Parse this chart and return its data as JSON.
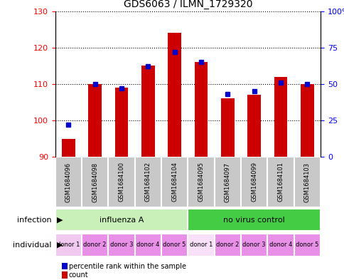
{
  "title": "GDS6063 / ILMN_1729320",
  "samples": [
    "GSM1684096",
    "GSM1684098",
    "GSM1684100",
    "GSM1684102",
    "GSM1684104",
    "GSM1684095",
    "GSM1684097",
    "GSM1684099",
    "GSM1684101",
    "GSM1684103"
  ],
  "counts": [
    95,
    110,
    109,
    115,
    124,
    116,
    106,
    107,
    112,
    110
  ],
  "percentile_ranks": [
    22,
    50,
    47,
    62,
    72,
    65,
    43,
    45,
    51,
    50
  ],
  "ylim_left": [
    90,
    130
  ],
  "ylim_right": [
    0,
    100
  ],
  "yticks_left": [
    90,
    100,
    110,
    120,
    130
  ],
  "yticks_right": [
    0,
    25,
    50,
    75,
    100
  ],
  "infection_groups": [
    {
      "label": "influenza A",
      "start": 0,
      "end": 5,
      "color": "#c8f0b8"
    },
    {
      "label": "no virus control",
      "start": 5,
      "end": 10,
      "color": "#44cc44"
    }
  ],
  "individual_labels": [
    "donor 1",
    "donor 2",
    "donor 3",
    "donor 4",
    "donor 5",
    "donor 1",
    "donor 2",
    "donor 3",
    "donor 4",
    "donor 5"
  ],
  "individual_colors": [
    "#f0c8f0",
    "#e890e8",
    "#e890e8",
    "#e890e8",
    "#e890e8",
    "#f8e0f8",
    "#e890e8",
    "#e890e8",
    "#e890e8",
    "#e890e8"
  ],
  "bar_color": "#cc0000",
  "percentile_color": "#0000cc",
  "bar_width": 0.5,
  "sample_bg_color": "#c8c8c8",
  "plot_bg_color": "#ffffff"
}
